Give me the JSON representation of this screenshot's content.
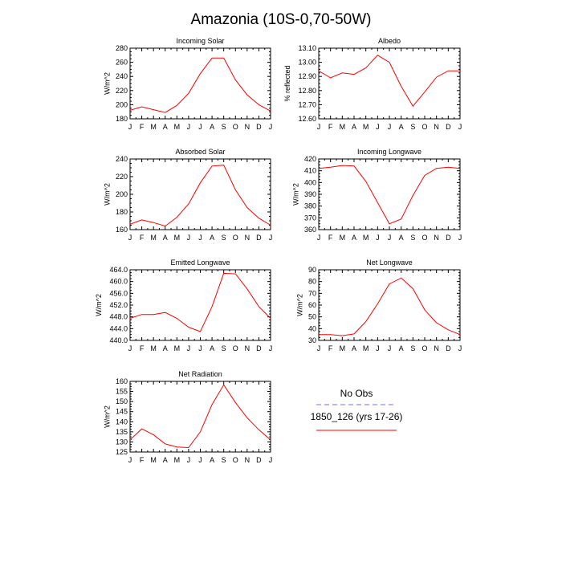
{
  "title": "Amazonia (10S-0,70-50W)",
  "chart_data": [
    {
      "type": "line",
      "title": "Incoming Solar",
      "ylabel": "W/m^2",
      "categories": [
        "J",
        "F",
        "M",
        "A",
        "M",
        "J",
        "J",
        "A",
        "S",
        "O",
        "N",
        "D",
        "J"
      ],
      "ylim": [
        180,
        280
      ],
      "yticks": [
        "180",
        "200",
        "220",
        "240",
        "260",
        "280"
      ],
      "series": [
        {
          "name": "1850_126 (yrs 17-26)",
          "color": "#ff0000",
          "values": [
            192,
            197,
            193,
            189,
            199,
            216,
            244,
            266,
            266,
            235,
            214,
            200,
            191
          ]
        }
      ]
    },
    {
      "type": "line",
      "title": "Albedo",
      "ylabel": "% reflected",
      "categories": [
        "J",
        "F",
        "M",
        "A",
        "M",
        "J",
        "J",
        "A",
        "S",
        "O",
        "N",
        "D",
        "J"
      ],
      "ylim": [
        12.6,
        13.1
      ],
      "yticks": [
        "12.60",
        "12.70",
        "12.80",
        "12.90",
        "13.00",
        "13.10"
      ],
      "series": [
        {
          "name": "1850_126 (yrs 17-26)",
          "color": "#ff0000",
          "values": [
            12.94,
            12.89,
            12.925,
            12.915,
            12.96,
            13.05,
            13.0,
            12.83,
            12.69,
            12.79,
            12.895,
            12.94,
            12.94
          ]
        }
      ]
    },
    {
      "type": "line",
      "title": "Absorbed Solar",
      "ylabel": "W/m^2",
      "categories": [
        "J",
        "F",
        "M",
        "A",
        "M",
        "J",
        "J",
        "A",
        "S",
        "O",
        "N",
        "D",
        "J"
      ],
      "ylim": [
        160,
        240
      ],
      "yticks": [
        "160",
        "180",
        "200",
        "220",
        "240"
      ],
      "series": [
        {
          "name": "1850_126 (yrs 17-26)",
          "color": "#ff0000",
          "values": [
            166,
            171,
            168,
            164,
            174,
            189,
            213,
            232,
            233,
            205,
            185,
            173,
            165
          ]
        }
      ]
    },
    {
      "type": "line",
      "title": "Incoming Longwave",
      "ylabel": "W/m^2",
      "categories": [
        "J",
        "F",
        "M",
        "A",
        "M",
        "J",
        "J",
        "A",
        "S",
        "O",
        "N",
        "D",
        "J"
      ],
      "ylim": [
        360,
        420
      ],
      "yticks": [
        "360",
        "370",
        "380",
        "390",
        "400",
        "410",
        "420"
      ],
      "series": [
        {
          "name": "1850_126 (yrs 17-26)",
          "color": "#ff0000",
          "values": [
            412,
            413,
            414.5,
            414,
            401,
            383,
            365,
            369,
            389,
            406,
            412,
            413,
            412
          ]
        }
      ]
    },
    {
      "type": "line",
      "title": "Emitted Longwave",
      "ylabel": "W/m^2",
      "categories": [
        "J",
        "F",
        "M",
        "A",
        "M",
        "J",
        "J",
        "A",
        "S",
        "O",
        "N",
        "D",
        "J"
      ],
      "ylim": [
        440,
        464
      ],
      "yticks": [
        "440.0",
        "444.0",
        "448.0",
        "452.0",
        "456.0",
        "460.0",
        "464.0"
      ],
      "series": [
        {
          "name": "1850_126 (yrs 17-26)",
          "color": "#ff0000",
          "values": [
            447.5,
            448.8,
            448.8,
            449.5,
            447.5,
            444.5,
            443.0,
            451.5,
            462.8,
            462.6,
            457.5,
            451.5,
            447.5
          ]
        }
      ]
    },
    {
      "type": "line",
      "title": "Net Longwave",
      "ylabel": "W/m^2",
      "categories": [
        "J",
        "F",
        "M",
        "A",
        "M",
        "J",
        "J",
        "A",
        "S",
        "O",
        "N",
        "D",
        "J"
      ],
      "ylim": [
        30,
        90
      ],
      "yticks": [
        "30",
        "40",
        "50",
        "60",
        "70",
        "80",
        "90"
      ],
      "series": [
        {
          "name": "1850_126 (yrs 17-26)",
          "color": "#ff0000",
          "values": [
            35,
            35,
            34,
            35.5,
            46,
            61,
            78,
            83,
            74,
            56,
            45,
            39,
            35
          ]
        }
      ]
    },
    {
      "type": "line",
      "title": "Net Radiation",
      "ylabel": "W/m^2",
      "categories": [
        "J",
        "F",
        "M",
        "A",
        "M",
        "J",
        "J",
        "A",
        "S",
        "O",
        "N",
        "D",
        "J"
      ],
      "ylim": [
        125,
        160
      ],
      "yticks": [
        "125",
        "130",
        "135",
        "140",
        "145",
        "150",
        "155",
        "160"
      ],
      "series": [
        {
          "name": "1850_126 (yrs 17-26)",
          "color": "#ff0000",
          "values": [
            131,
            136.5,
            133.5,
            129,
            127.5,
            127.2,
            135,
            148.5,
            158.3,
            149.5,
            142,
            136,
            131
          ]
        }
      ]
    }
  ],
  "legend": {
    "obs_label": "No Obs",
    "obs_color": "#6f6fff",
    "model_label": "1850_126 (yrs 17-26)",
    "model_color": "#ff0000"
  }
}
